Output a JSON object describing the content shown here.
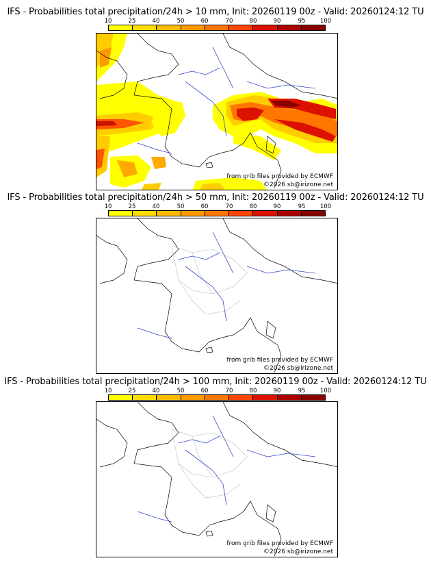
{
  "legend": {
    "ticks": [
      "10",
      "25",
      "40",
      "50",
      "60",
      "70",
      "80",
      "90",
      "95",
      "100"
    ],
    "colors": [
      "#ffff00",
      "#ffdd00",
      "#ffbb00",
      "#ff9900",
      "#ff7700",
      "#ff4400",
      "#dd1100",
      "#aa0000",
      "#880000",
      "#660000"
    ]
  },
  "panels": [
    {
      "title": "IFS - Probabilities total precipitation/24h > 10 mm, Init: 20260119 00z - Valid: 20260124:12 TU",
      "credit_source": "from grib files provided by ECMWF",
      "credit_copyright": "©2026 sb@irizone.net"
    },
    {
      "title": "IFS - Probabilities total precipitation/24h > 50 mm, Init: 20260119 00z - Valid: 20260124:12 TU",
      "credit_source": "from grib files provided by ECMWF",
      "credit_copyright": "©2026 sb@irizone.net"
    },
    {
      "title": "IFS - Probabilities total precipitation/24h > 100 mm, Init: 20260119 00z - Valid: 20260124:12 TU",
      "credit_source": "from grib files provided by ECMWF",
      "credit_copyright": "©2026 sb@irizone.net"
    }
  ]
}
